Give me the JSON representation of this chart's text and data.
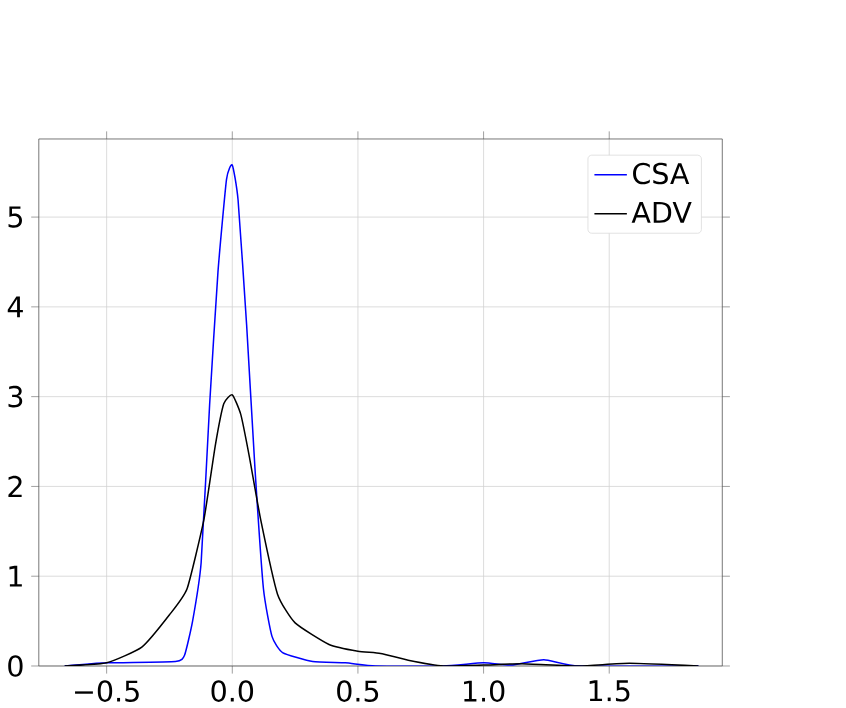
{
  "chart_data": {
    "type": "line",
    "xlim": [
      -0.77,
      1.95
    ],
    "ylim": [
      0,
      5.87
    ],
    "xticks": [
      {
        "value": -0.5,
        "label": "−0.5"
      },
      {
        "value": 0.0,
        "label": "0.0"
      },
      {
        "value": 0.5,
        "label": "0.5"
      },
      {
        "value": 1.0,
        "label": "1.0"
      },
      {
        "value": 1.5,
        "label": "1.5"
      }
    ],
    "yticks": [
      0,
      1,
      2,
      3,
      4,
      5
    ],
    "grid": true,
    "legend": "top right",
    "series": [
      {
        "name": "CSA",
        "color": "#0000ff",
        "x": [
          -0.667,
          -0.5,
          -0.226,
          -0.19,
          -0.158,
          -0.124,
          -0.09,
          -0.057,
          -0.023,
          0,
          0.023,
          0.057,
          0.09,
          0.124,
          0.158,
          0.2,
          0.32,
          0.45,
          0.57,
          0.84,
          1.0,
          1.11,
          1.24,
          1.38,
          1.855
        ],
        "values": [
          0,
          0.035,
          0.05,
          0.12,
          0.5,
          1.15,
          2.92,
          4.39,
          5.42,
          5.58,
          5.19,
          3.8,
          2.21,
          0.86,
          0.33,
          0.15,
          0.05,
          0.035,
          0,
          0,
          0.035,
          0.01,
          0.07,
          0,
          0
        ]
      },
      {
        "name": "ADV",
        "color": "#000000",
        "x": [
          -0.667,
          -0.5,
          -0.36,
          -0.25,
          -0.18,
          -0.113,
          -0.068,
          -0.034,
          0,
          0.034,
          0.068,
          0.113,
          0.18,
          0.25,
          0.385,
          0.5,
          0.59,
          0.7,
          0.84,
          1.0,
          1.15,
          1.38,
          1.58,
          1.855
        ],
        "values": [
          0,
          0.035,
          0.21,
          0.57,
          0.86,
          1.63,
          2.45,
          2.92,
          3.02,
          2.8,
          2.33,
          1.63,
          0.8,
          0.48,
          0.24,
          0.165,
          0.14,
          0.065,
          0,
          0.01,
          0.025,
          0,
          0.03,
          0
        ]
      }
    ]
  }
}
